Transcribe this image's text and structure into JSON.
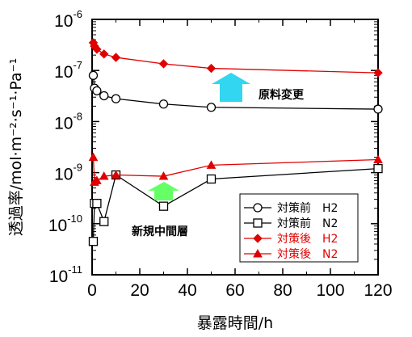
{
  "chart_data": {
    "type": "scatter",
    "xlabel": "暴露時間/h",
    "ylabel": "透過率/mol·m⁻²·s⁻¹·Pa⁻¹",
    "xlim": [
      0,
      120
    ],
    "ylim": [
      1e-11,
      1e-06
    ],
    "yscale": "log",
    "x_ticks": [
      0,
      20,
      40,
      60,
      80,
      100,
      120
    ],
    "y_ticks": [
      {
        "base": "10",
        "exp": "-11",
        "value": 1e-11
      },
      {
        "base": "10",
        "exp": "-10",
        "value": 1e-10
      },
      {
        "base": "10",
        "exp": "-9",
        "value": 1e-09
      },
      {
        "base": "10",
        "exp": "-8",
        "value": 1e-08
      },
      {
        "base": "10",
        "exp": "-7",
        "value": 1e-07
      },
      {
        "base": "10",
        "exp": "-6",
        "value": 1e-06
      }
    ],
    "legend_position": "bottom-right",
    "series": [
      {
        "name": "対策前　H2",
        "color": "#000000",
        "marker": "circle-open",
        "x": [
          0.5,
          1,
          2,
          5,
          10,
          30,
          50,
          120
        ],
        "y": [
          8e-08,
          4.5e-08,
          4e-08,
          3.2e-08,
          2.8e-08,
          2.2e-08,
          1.9e-08,
          1.75e-08
        ]
      },
      {
        "name": "対策前　N2",
        "color": "#000000",
        "marker": "square-open",
        "x": [
          0.5,
          1,
          2,
          5,
          10,
          30,
          50,
          120
        ],
        "y": [
          4.5e-11,
          2.5e-10,
          2.5e-10,
          1.1e-10,
          9e-10,
          2.2e-10,
          7.5e-10,
          1.2e-09
        ]
      },
      {
        "name": "対策後　H2",
        "color": "#e00000",
        "marker": "diamond-filled",
        "x": [
          0.5,
          1,
          2,
          5,
          10,
          30,
          50,
          120
        ],
        "y": [
          3.5e-07,
          3e-07,
          2.6e-07,
          2.1e-07,
          1.8e-07,
          1.35e-07,
          1.1e-07,
          9e-08
        ]
      },
      {
        "name": "対策後　N2",
        "color": "#e00000",
        "marker": "triangle-filled",
        "x": [
          0.5,
          1,
          2,
          5,
          10,
          30,
          50,
          120
        ],
        "y": [
          2e-09,
          6.5e-10,
          7e-10,
          8.5e-10,
          9e-10,
          8.5e-10,
          1.4e-09,
          1.8e-09
        ]
      }
    ],
    "annotations": [
      {
        "text": "原料変更",
        "color": "#33d6f0"
      },
      {
        "text": "新規中間層",
        "color": "#66ff66"
      }
    ]
  }
}
